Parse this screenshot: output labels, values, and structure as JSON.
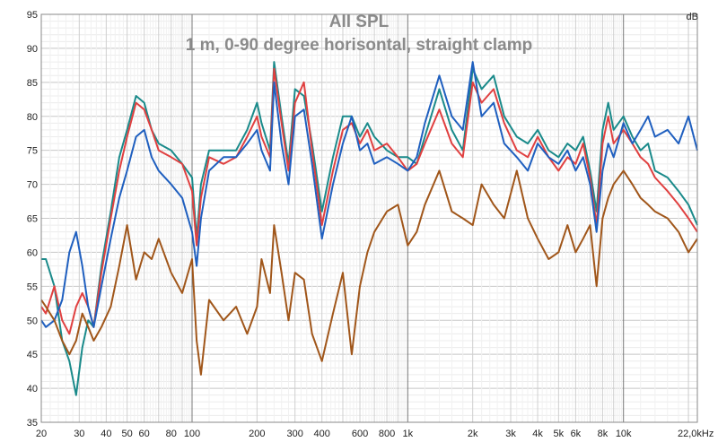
{
  "chart_data": {
    "type": "line",
    "title": "All SPL",
    "subtitle": "1 m, 0-90 degree horisontal, straight clamp",
    "ylabel": "dB",
    "xunit_label": "22,0kHz",
    "x_scale": "log",
    "xlim": [
      20,
      22000
    ],
    "ylim": [
      35,
      95
    ],
    "y_ticks": [
      35,
      40,
      45,
      50,
      55,
      60,
      65,
      70,
      75,
      80,
      85,
      90,
      95
    ],
    "x_ticks": [
      {
        "v": 20,
        "label": "20"
      },
      {
        "v": 30,
        "label": "30"
      },
      {
        "v": 40,
        "label": "40"
      },
      {
        "v": 50,
        "label": "50"
      },
      {
        "v": 60,
        "label": "60"
      },
      {
        "v": 80,
        "label": "80"
      },
      {
        "v": 100,
        "label": "100"
      },
      {
        "v": 200,
        "label": "200"
      },
      {
        "v": 300,
        "label": "300"
      },
      {
        "v": 400,
        "label": "400"
      },
      {
        "v": 600,
        "label": "600"
      },
      {
        "v": 800,
        "label": "800"
      },
      {
        "v": 1000,
        "label": "1k"
      },
      {
        "v": 2000,
        "label": "2k"
      },
      {
        "v": 3000,
        "label": "3k"
      },
      {
        "v": 4000,
        "label": "4k"
      },
      {
        "v": 5000,
        "label": "5k"
      },
      {
        "v": 6000,
        "label": "6k"
      },
      {
        "v": 8000,
        "label": "8k"
      },
      {
        "v": 10000,
        "label": "10k"
      }
    ],
    "grid": true,
    "series": [
      {
        "color": "#1a8a8a",
        "x": [
          20,
          21,
          23,
          25,
          27,
          29,
          31,
          33,
          35,
          38,
          42,
          46,
          50,
          55,
          60,
          65,
          70,
          80,
          90,
          100,
          105,
          110,
          120,
          140,
          160,
          180,
          200,
          210,
          230,
          240,
          260,
          280,
          300,
          330,
          360,
          400,
          450,
          500,
          550,
          600,
          650,
          700,
          800,
          900,
          1000,
          1100,
          1200,
          1400,
          1600,
          1800,
          2000,
          2200,
          2500,
          2800,
          3200,
          3600,
          4000,
          4500,
          5000,
          5500,
          6000,
          6500,
          7000,
          7500,
          8000,
          8500,
          9000,
          10000,
          11000,
          12000,
          13000,
          14000,
          16000,
          18000,
          20000,
          22000
        ],
        "y": [
          59,
          59,
          55,
          47,
          44,
          39,
          46,
          50,
          49,
          58,
          66,
          74,
          78,
          83,
          82,
          78,
          76,
          75,
          73,
          71,
          62,
          70,
          75,
          75,
          75,
          78,
          82,
          79,
          75,
          88,
          80,
          73,
          84,
          83,
          76,
          66,
          74,
          80,
          80,
          77,
          79,
          77,
          75,
          74,
          74,
          73,
          77,
          84,
          78,
          75,
          87,
          84,
          86,
          80,
          77,
          76,
          78,
          75,
          74,
          76,
          75,
          77,
          72,
          66,
          78,
          82,
          78,
          80,
          77,
          75,
          76,
          72,
          71,
          69,
          67,
          64
        ]
      },
      {
        "color": "#e04040",
        "x": [
          20,
          21,
          23,
          25,
          27,
          29,
          31,
          33,
          35,
          38,
          42,
          46,
          50,
          55,
          60,
          65,
          70,
          80,
          90,
          100,
          105,
          110,
          120,
          140,
          160,
          180,
          200,
          210,
          230,
          240,
          260,
          280,
          300,
          330,
          360,
          400,
          450,
          500,
          550,
          600,
          650,
          700,
          800,
          900,
          1000,
          1100,
          1200,
          1400,
          1600,
          1800,
          2000,
          2200,
          2500,
          2800,
          3200,
          3600,
          4000,
          4500,
          5000,
          5500,
          6000,
          6500,
          7000,
          7500,
          8000,
          8500,
          9000,
          10000,
          11000,
          12000,
          13000,
          14000,
          16000,
          18000,
          20000,
          22000
        ],
        "y": [
          52,
          51,
          55,
          50,
          48,
          52,
          54,
          52,
          49,
          57,
          65,
          72,
          77,
          82,
          81,
          78,
          75,
          74,
          73,
          69,
          61,
          68,
          74,
          73,
          74,
          77,
          80,
          77,
          74,
          87,
          79,
          72,
          82,
          85,
          75,
          64,
          72,
          78,
          79,
          76,
          78,
          75,
          76,
          74,
          72,
          73,
          76,
          81,
          76,
          74,
          85,
          82,
          84,
          79,
          75,
          74,
          77,
          74,
          72,
          74,
          73,
          76,
          71,
          64,
          76,
          80,
          76,
          78,
          76,
          74,
          73,
          71,
          69,
          67,
          65,
          63
        ]
      },
      {
        "color": "#1f5fbf",
        "x": [
          20,
          21,
          23,
          25,
          27,
          29,
          31,
          33,
          35,
          38,
          42,
          46,
          50,
          55,
          60,
          65,
          70,
          80,
          90,
          100,
          105,
          110,
          120,
          140,
          160,
          180,
          200,
          210,
          230,
          240,
          260,
          280,
          300,
          330,
          360,
          400,
          450,
          500,
          550,
          600,
          650,
          700,
          800,
          900,
          1000,
          1100,
          1200,
          1400,
          1600,
          1800,
          2000,
          2200,
          2500,
          2800,
          3200,
          3600,
          4000,
          4500,
          5000,
          5500,
          6000,
          6500,
          7000,
          7500,
          8000,
          8500,
          9000,
          10000,
          11000,
          12000,
          13000,
          14000,
          16000,
          18000,
          20000,
          22000
        ],
        "y": [
          50,
          49,
          50,
          53,
          60,
          63,
          58,
          52,
          49,
          55,
          62,
          68,
          72,
          77,
          78,
          74,
          72,
          70,
          68,
          63,
          58,
          65,
          72,
          74,
          74,
          76,
          78,
          75,
          72,
          85,
          76,
          70,
          80,
          81,
          73,
          62,
          70,
          76,
          80,
          75,
          76,
          73,
          74,
          73,
          72,
          74,
          79,
          86,
          80,
          78,
          88,
          80,
          82,
          76,
          74,
          72,
          76,
          74,
          73,
          75,
          72,
          74,
          70,
          63,
          72,
          76,
          74,
          79,
          76,
          78,
          80,
          77,
          78,
          76,
          80,
          75
        ]
      },
      {
        "color": "#a0561a",
        "x": [
          20,
          21,
          23,
          25,
          27,
          29,
          31,
          33,
          35,
          38,
          42,
          46,
          50,
          55,
          60,
          65,
          70,
          80,
          90,
          100,
          105,
          110,
          120,
          140,
          160,
          180,
          200,
          210,
          230,
          240,
          260,
          280,
          300,
          330,
          360,
          400,
          450,
          500,
          550,
          600,
          650,
          700,
          800,
          900,
          1000,
          1100,
          1200,
          1400,
          1600,
          1800,
          2000,
          2200,
          2500,
          2800,
          3200,
          3600,
          4000,
          4500,
          5000,
          5500,
          6000,
          6500,
          7000,
          7500,
          8000,
          8500,
          9000,
          10000,
          11000,
          12000,
          13000,
          14000,
          16000,
          18000,
          20000,
          22000
        ],
        "y": [
          53,
          52,
          50,
          47,
          45,
          47,
          51,
          49,
          47,
          49,
          52,
          58,
          64,
          56,
          60,
          59,
          62,
          57,
          54,
          59,
          47,
          42,
          53,
          50,
          52,
          48,
          52,
          59,
          54,
          64,
          57,
          50,
          57,
          56,
          48,
          44,
          51,
          57,
          45,
          55,
          60,
          63,
          66,
          67,
          61,
          63,
          67,
          72,
          66,
          65,
          64,
          70,
          67,
          65,
          72,
          65,
          62,
          59,
          60,
          64,
          60,
          62,
          64,
          55,
          65,
          68,
          70,
          72,
          70,
          68,
          67,
          66,
          65,
          63,
          60,
          62
        ]
      }
    ]
  }
}
